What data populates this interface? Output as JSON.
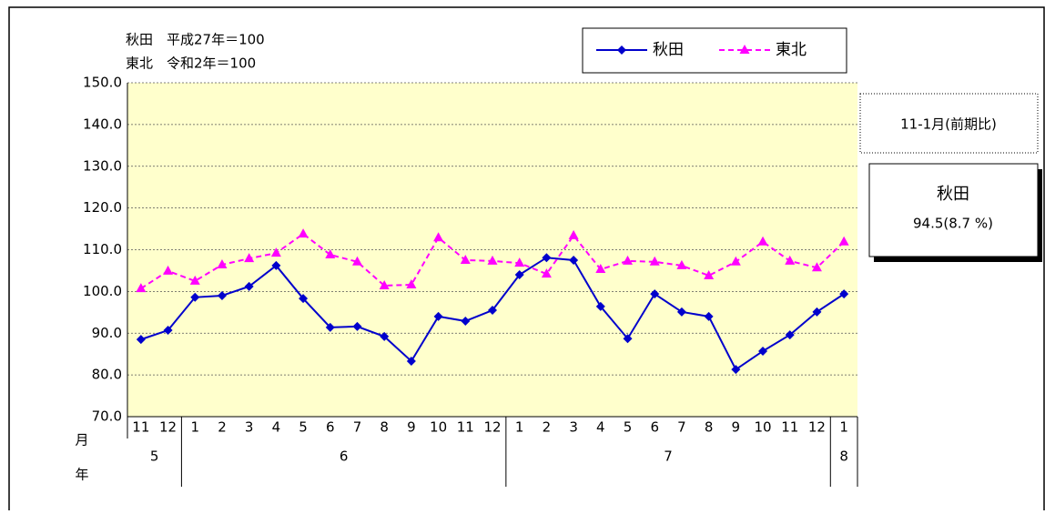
{
  "chart_data": {
    "type": "line",
    "notes": [
      "秋田　平成27年＝100",
      "東北　令和2年＝100"
    ],
    "categories": [
      "11",
      "12",
      "1",
      "2",
      "3",
      "4",
      "5",
      "6",
      "7",
      "8",
      "9",
      "10",
      "11",
      "12",
      "1",
      "2",
      "3",
      "4",
      "5",
      "6",
      "7",
      "8",
      "9",
      "10",
      "11",
      "12",
      "1"
    ],
    "x_axis_label": "月",
    "year_axis_label": "年",
    "year_labels": [
      "5",
      "6",
      "7",
      "8"
    ],
    "series": [
      {
        "name": "秋田",
        "color": "#0000cc",
        "marker": "diamond",
        "dash": false,
        "values": [
          88.5,
          90.7,
          98.6,
          99.0,
          101.2,
          106.2,
          98.3,
          91.4,
          91.6,
          89.2,
          83.3,
          94.0,
          92.9,
          95.5,
          104.0,
          108.1,
          107.5,
          96.4,
          88.7,
          99.4,
          95.1,
          94.0,
          81.3,
          85.7,
          89.6,
          95.1,
          99.4
        ]
      },
      {
        "name": "東北",
        "color": "#ff00ff",
        "marker": "triangle",
        "dash": true,
        "values": [
          100.7,
          104.9,
          102.5,
          106.4,
          107.9,
          109.2,
          113.8,
          108.8,
          107.1,
          101.4,
          101.6,
          112.9,
          107.5,
          107.3,
          106.8,
          104.2,
          113.4,
          105.3,
          107.3,
          107.1,
          106.2,
          103.8,
          107.1,
          111.9,
          107.3,
          105.7,
          111.9
        ]
      }
    ],
    "ylim": [
      70,
      150
    ],
    "yticks": [
      {
        "value": 70,
        "label": "70.0"
      },
      {
        "value": 80,
        "label": "80.0"
      },
      {
        "value": 90,
        "label": "90.0"
      },
      {
        "value": 100,
        "label": "100.0"
      },
      {
        "value": 110,
        "label": "110.0"
      },
      {
        "value": 120,
        "label": "120.0"
      },
      {
        "value": 130,
        "label": "130.0"
      },
      {
        "value": 140,
        "label": "140.0"
      },
      {
        "value": 150,
        "label": "150.0"
      }
    ],
    "grid": true,
    "side_panel": {
      "period": "11-1月(前期比)",
      "region": "秋田",
      "figure": "94.5(8.7 %)"
    }
  }
}
